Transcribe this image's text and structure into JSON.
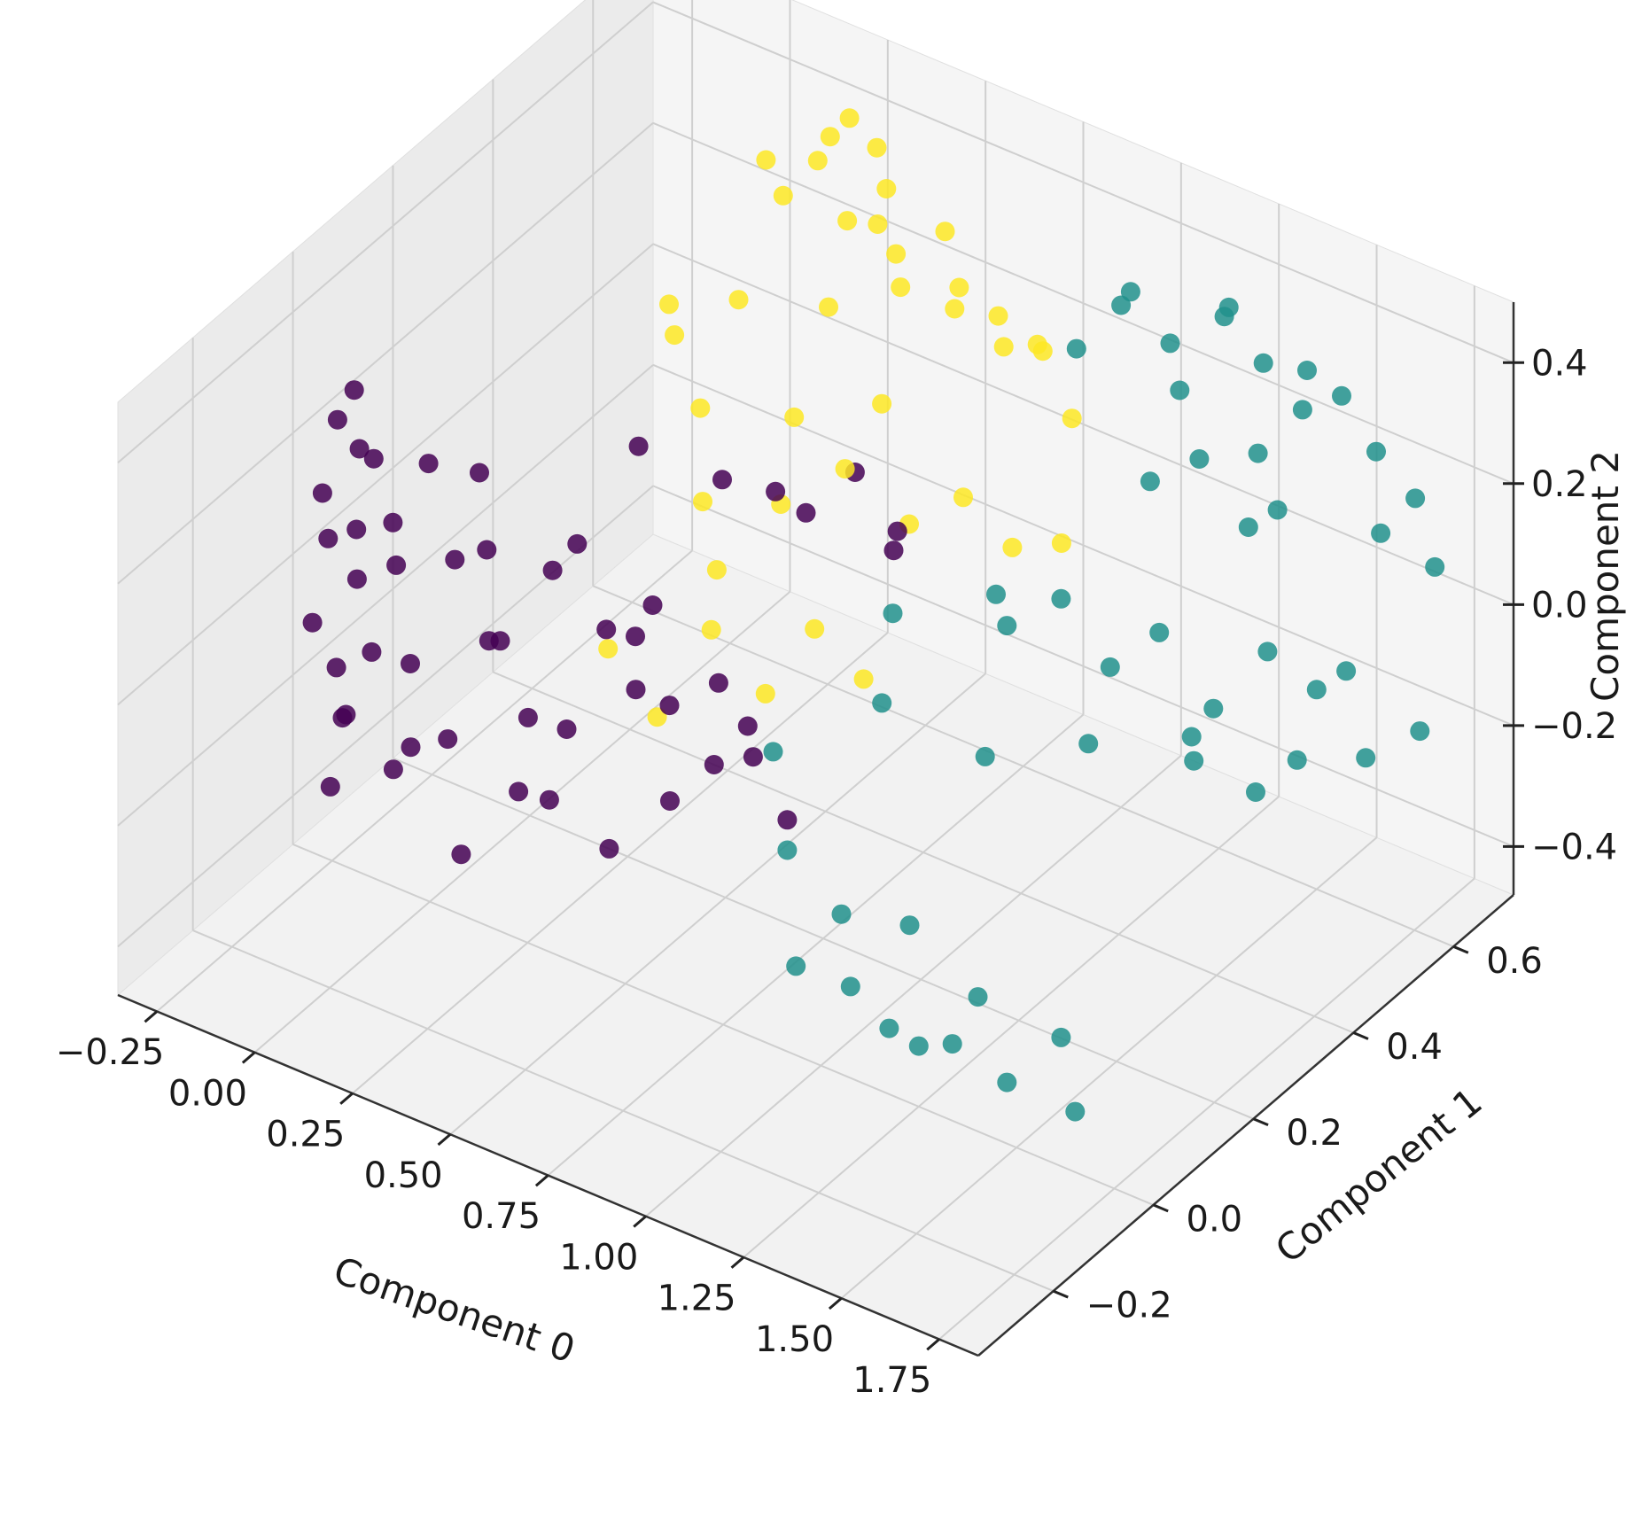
{
  "chart_data": {
    "type": "scatter",
    "projection": "3d",
    "title": "",
    "xlabel": "Component 0",
    "ylabel": "Component 1",
    "zlabel": "Component 2",
    "xlim": [
      -0.35,
      1.85
    ],
    "ylim": [
      -0.35,
      0.72
    ],
    "zlim": [
      -0.48,
      0.5
    ],
    "x_ticks": [
      -0.25,
      0.0,
      0.25,
      0.5,
      0.75,
      1.0,
      1.25,
      1.5,
      1.75
    ],
    "x_tick_labels": [
      "−0.25",
      "0.00",
      "0.25",
      "0.50",
      "0.75",
      "1.00",
      "1.25",
      "1.50",
      "1.75"
    ],
    "y_ticks": [
      -0.2,
      0.0,
      0.2,
      0.4,
      0.6
    ],
    "y_tick_labels": [
      "−0.2",
      "0.0",
      "0.2",
      "0.4",
      "0.6"
    ],
    "z_ticks": [
      -0.4,
      -0.2,
      0.0,
      0.2,
      0.4
    ],
    "z_tick_labels": [
      "−0.4",
      "−0.2",
      "0.0",
      "0.2",
      "0.4"
    ],
    "grid": true,
    "legend": "none",
    "colormap": "viridis",
    "series": [
      {
        "color": "#440154",
        "points": [
          [
            -0.3,
            0.05,
            0.2
          ],
          [
            -0.3,
            0.02,
            0.1
          ],
          [
            -0.29,
            0.08,
            0.0
          ],
          [
            -0.3,
            0.0,
            -0.1
          ],
          [
            -0.29,
            0.04,
            -0.2
          ],
          [
            -0.3,
            0.06,
            -0.3
          ],
          [
            -0.28,
            0.02,
            -0.38
          ],
          [
            -0.27,
            0.06,
            0.25
          ],
          [
            -0.26,
            0.0,
            0.05
          ],
          [
            -0.25,
            0.05,
            -0.05
          ],
          [
            -0.24,
            0.02,
            -0.25
          ],
          [
            -0.22,
            0.06,
            0.15
          ],
          [
            -0.2,
            0.04,
            -0.15
          ],
          [
            -0.18,
            0.0,
            0.22
          ],
          [
            -0.17,
            0.06,
            -0.35
          ],
          [
            -0.15,
            0.05,
            0.0
          ],
          [
            -0.12,
            0.02,
            0.1
          ],
          [
            -0.1,
            0.04,
            -0.28
          ],
          [
            -0.08,
            0.06,
            0.18
          ],
          [
            -0.05,
            0.0,
            -0.1
          ],
          [
            0.0,
            0.05,
            0.05
          ],
          [
            0.02,
            0.02,
            -0.22
          ],
          [
            0.05,
            0.06,
            0.2
          ],
          [
            0.08,
            0.0,
            -0.38
          ],
          [
            0.1,
            0.04,
            -0.05
          ],
          [
            0.12,
            0.02,
            0.12
          ],
          [
            0.15,
            0.06,
            -0.3
          ],
          [
            0.18,
            0.0,
            0.0
          ],
          [
            0.2,
            0.04,
            -0.15
          ],
          [
            0.25,
            0.05,
            0.1
          ],
          [
            0.28,
            0.02,
            -0.25
          ],
          [
            0.3,
            0.06,
            0.15
          ],
          [
            0.35,
            0.0,
            -0.1
          ],
          [
            0.4,
            0.04,
            0.05
          ],
          [
            0.42,
            0.03,
            -0.3
          ],
          [
            0.45,
            0.06,
            -0.05
          ],
          [
            0.5,
            0.02,
            0.08
          ],
          [
            0.55,
            0.05,
            -0.2
          ],
          [
            0.6,
            0.01,
            0.0
          ],
          [
            0.65,
            0.06,
            -0.12
          ],
          [
            0.7,
            0.03,
            0.05
          ],
          [
            0.75,
            0.06,
            -0.08
          ],
          [
            0.8,
            0.01,
            0.02
          ],
          [
            0.85,
            0.05,
            -0.15
          ],
          [
            0.15,
            0.3,
            0.1
          ],
          [
            0.3,
            0.35,
            0.05
          ],
          [
            0.45,
            0.4,
            0.0
          ],
          [
            0.55,
            0.42,
            0.08
          ],
          [
            0.62,
            0.45,
            -0.02
          ],
          [
            0.25,
            0.25,
            -0.1
          ],
          [
            0.5,
            0.3,
            0.12
          ],
          [
            0.7,
            0.38,
            0.02
          ]
        ]
      },
      {
        "color": "#fde725",
        "points": [
          [
            0.05,
            0.45,
            0.15
          ],
          [
            0.1,
            0.4,
            0.25
          ],
          [
            0.15,
            0.5,
            0.2
          ],
          [
            0.2,
            0.55,
            0.35
          ],
          [
            0.25,
            0.58,
            0.4
          ],
          [
            0.3,
            0.6,
            0.3
          ],
          [
            0.28,
            0.62,
            0.45
          ],
          [
            0.35,
            0.62,
            0.42
          ],
          [
            0.4,
            0.6,
            0.38
          ],
          [
            0.45,
            0.58,
            0.3
          ],
          [
            0.5,
            0.55,
            0.28
          ],
          [
            0.55,
            0.6,
            0.35
          ],
          [
            0.6,
            0.58,
            0.25
          ],
          [
            0.65,
            0.55,
            0.32
          ],
          [
            0.7,
            0.6,
            0.2
          ],
          [
            0.75,
            0.55,
            0.3
          ],
          [
            0.8,
            0.6,
            0.22
          ],
          [
            0.85,
            0.55,
            0.28
          ],
          [
            0.9,
            0.58,
            0.15
          ],
          [
            0.22,
            0.5,
            0.45
          ],
          [
            0.32,
            0.55,
            0.48
          ],
          [
            0.38,
            0.5,
            0.25
          ],
          [
            0.48,
            0.52,
            0.4
          ],
          [
            0.18,
            0.4,
            0.1
          ],
          [
            0.25,
            0.35,
            0.0
          ],
          [
            0.35,
            0.3,
            -0.05
          ],
          [
            0.45,
            0.35,
            0.05
          ],
          [
            0.55,
            0.4,
            0.1
          ],
          [
            0.65,
            0.45,
            0.0
          ],
          [
            0.75,
            0.48,
            0.05
          ],
          [
            0.85,
            0.5,
            -0.02
          ],
          [
            0.95,
            0.52,
            0.0
          ],
          [
            0.2,
            0.2,
            -0.15
          ],
          [
            0.3,
            0.22,
            -0.25
          ],
          [
            0.4,
            0.25,
            -0.1
          ],
          [
            0.5,
            0.28,
            -0.2
          ],
          [
            0.6,
            0.3,
            -0.08
          ],
          [
            0.7,
            0.32,
            -0.15
          ],
          [
            0.42,
            0.4,
            0.15
          ],
          [
            0.58,
            0.45,
            0.18
          ]
        ]
      },
      {
        "color": "#21918c",
        "points": [
          [
            0.95,
            0.55,
            0.3
          ],
          [
            1.0,
            0.6,
            0.35
          ],
          [
            1.05,
            0.58,
            0.4
          ],
          [
            1.1,
            0.62,
            0.3
          ],
          [
            1.15,
            0.6,
            0.25
          ],
          [
            1.2,
            0.65,
            0.35
          ],
          [
            1.25,
            0.62,
            0.4
          ],
          [
            1.3,
            0.65,
            0.3
          ],
          [
            1.35,
            0.6,
            0.2
          ],
          [
            1.4,
            0.65,
            0.25
          ],
          [
            1.45,
            0.62,
            0.35
          ],
          [
            1.5,
            0.65,
            0.3
          ],
          [
            1.55,
            0.68,
            0.2
          ],
          [
            1.6,
            0.65,
            0.1
          ],
          [
            1.65,
            0.68,
            0.15
          ],
          [
            1.7,
            0.68,
            0.05
          ],
          [
            1.2,
            0.6,
            0.15
          ],
          [
            1.3,
            0.62,
            0.05
          ],
          [
            1.1,
            0.58,
            0.1
          ],
          [
            1.4,
            0.6,
            0.12
          ],
          [
            0.9,
            0.45,
            -0.1
          ],
          [
            1.0,
            0.48,
            -0.05
          ],
          [
            1.1,
            0.5,
            -0.15
          ],
          [
            1.2,
            0.52,
            -0.08
          ],
          [
            1.3,
            0.55,
            -0.2
          ],
          [
            1.4,
            0.58,
            -0.1
          ],
          [
            1.5,
            0.6,
            -0.15
          ],
          [
            1.6,
            0.62,
            -0.25
          ],
          [
            1.7,
            0.65,
            -0.2
          ],
          [
            1.25,
            0.55,
            -0.3
          ],
          [
            1.45,
            0.6,
            -0.28
          ],
          [
            1.55,
            0.62,
            -0.12
          ],
          [
            0.75,
            0.1,
            -0.1
          ],
          [
            0.85,
            0.05,
            -0.2
          ],
          [
            0.95,
            0.08,
            -0.3
          ],
          [
            1.05,
            0.02,
            -0.35
          ],
          [
            1.15,
            0.06,
            -0.25
          ],
          [
            1.25,
            0.0,
            -0.38
          ],
          [
            1.35,
            0.04,
            -0.3
          ],
          [
            1.45,
            0.02,
            -0.4
          ],
          [
            1.55,
            0.05,
            -0.32
          ],
          [
            1.65,
            0.0,
            -0.38
          ],
          [
            1.0,
            -0.05,
            -0.28
          ],
          [
            1.2,
            -0.02,
            -0.35
          ],
          [
            1.4,
            -0.05,
            -0.3
          ],
          [
            0.9,
            0.2,
            -0.05
          ],
          [
            1.1,
            0.25,
            -0.12
          ],
          [
            1.3,
            0.3,
            -0.08
          ],
          [
            1.5,
            0.35,
            -0.05
          ],
          [
            0.8,
            0.3,
            0.0
          ],
          [
            1.0,
            0.35,
            0.05
          ],
          [
            1.6,
            0.4,
            -0.15
          ]
        ]
      }
    ]
  }
}
